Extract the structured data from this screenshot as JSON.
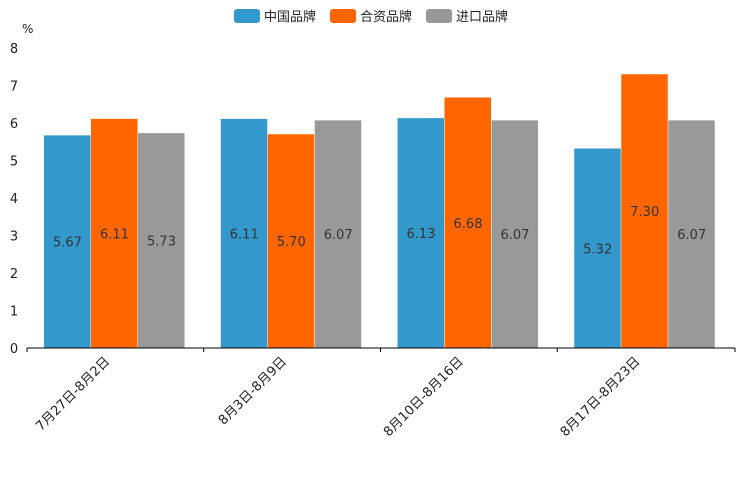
{
  "chart_data": {
    "type": "bar",
    "title": "",
    "unit": "%",
    "xlabel": "",
    "ylabel": "%",
    "ylim": [
      0,
      8
    ],
    "yticks": [
      0,
      1,
      2,
      3,
      4,
      5,
      6,
      7,
      8
    ],
    "grid": false,
    "legend_position": "top-center",
    "categories": [
      "7月27日-8月2日",
      "8月3日-8月9日",
      "8月10日-8月16日",
      "8月17日-8月23日"
    ],
    "series": [
      {
        "name": "中国品牌",
        "color": "#3399cc",
        "values": [
          5.67,
          6.11,
          6.13,
          5.32
        ],
        "labels": [
          "5.67",
          "6.11",
          "6.13",
          "5.32"
        ]
      },
      {
        "name": "合资品牌",
        "color": "#ff6600",
        "values": [
          6.11,
          5.7,
          6.68,
          7.3
        ],
        "labels": [
          "6.11",
          "5.70",
          "6.68",
          "7.30"
        ]
      },
      {
        "name": "进口品牌",
        "color": "#999999",
        "values": [
          5.73,
          6.07,
          6.07,
          6.07
        ],
        "labels": [
          "5.73",
          "6.07",
          "6.07",
          "6.07"
        ]
      }
    ]
  }
}
